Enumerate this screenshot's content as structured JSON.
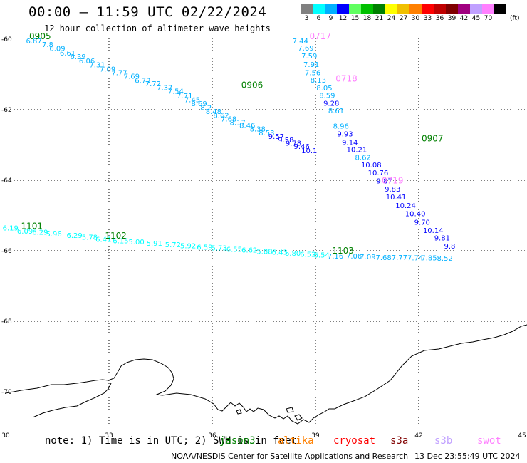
{
  "header": {
    "title": "00:00 – 11:59 UTC 02/22/2024",
    "subtitle": "12 hour collection of altimeter wave heights"
  },
  "legend": {
    "unit": "(ft)",
    "bins": [
      {
        "label": "3",
        "color": "#808080"
      },
      {
        "label": "6",
        "color": "#00ffff"
      },
      {
        "label": "9",
        "color": "#00b0ff"
      },
      {
        "label": "12",
        "color": "#0000ff"
      },
      {
        "label": "15",
        "color": "#60ff60"
      },
      {
        "label": "18",
        "color": "#00c000"
      },
      {
        "label": "21",
        "color": "#008000"
      },
      {
        "label": "24",
        "color": "#ffff00"
      },
      {
        "label": "27",
        "color": "#f0c000"
      },
      {
        "label": "30",
        "color": "#ff8000"
      },
      {
        "label": "33",
        "color": "#ff0000"
      },
      {
        "label": "36",
        "color": "#c00000"
      },
      {
        "label": "39",
        "color": "#800000"
      },
      {
        "label": "42",
        "color": "#a00080"
      },
      {
        "label": "45",
        "color": "#c0a0ff"
      },
      {
        "label": "70",
        "color": "#ff80ff"
      },
      {
        "label": "",
        "color": "#000000"
      }
    ]
  },
  "map": {
    "lon_ticks": [
      "30",
      "33",
      "36",
      "39",
      "42",
      "45"
    ],
    "lat_ticks": [
      "-60",
      "-62",
      "-64",
      "-66",
      "-68",
      "-70"
    ],
    "tracks": [
      {
        "name": "track-0905",
        "points": [
          {
            "t": "6.87",
            "lon": 30.82,
            "lat": -60.12,
            "c": "#00b0ff"
          },
          {
            "t": "7.8",
            "lon": 31.22,
            "lat": -60.22,
            "c": "#00b0ff"
          },
          {
            "t": "6.09",
            "lon": 31.5,
            "lat": -60.33,
            "c": "#00b0ff"
          },
          {
            "t": "6.61",
            "lon": 31.8,
            "lat": -60.46,
            "c": "#00b0ff"
          },
          {
            "t": "6.39",
            "lon": 32.1,
            "lat": -60.57,
            "c": "#00b0ff"
          },
          {
            "t": "6.06",
            "lon": 32.36,
            "lat": -60.69,
            "c": "#00b0ff"
          },
          {
            "t": "7.31",
            "lon": 32.66,
            "lat": -60.8,
            "c": "#00b0ff"
          },
          {
            "t": "7.09",
            "lon": 32.96,
            "lat": -60.92,
            "c": "#00b0ff"
          },
          {
            "t": "7.77",
            "lon": 33.3,
            "lat": -61.02,
            "c": "#00b0ff"
          },
          {
            "t": "7.69",
            "lon": 33.66,
            "lat": -61.12,
            "c": "#00b0ff"
          },
          {
            "t": "6.73",
            "lon": 33.98,
            "lat": -61.24,
            "c": "#00b0ff"
          },
          {
            "t": "7.72",
            "lon": 34.28,
            "lat": -61.33,
            "c": "#00b0ff"
          },
          {
            "t": "7.37",
            "lon": 34.62,
            "lat": -61.44,
            "c": "#00b0ff"
          },
          {
            "t": "7.54",
            "lon": 34.94,
            "lat": -61.55,
            "c": "#00b0ff"
          },
          {
            "t": "7.71",
            "lon": 35.2,
            "lat": -61.68,
            "c": "#00b0ff"
          },
          {
            "t": "7.45",
            "lon": 35.42,
            "lat": -61.79,
            "c": "#00b0ff"
          },
          {
            "t": "8.69",
            "lon": 35.62,
            "lat": -61.9,
            "c": "#00b0ff"
          },
          {
            "t": "8.2",
            "lon": 35.82,
            "lat": -62.01,
            "c": "#00b0ff"
          },
          {
            "t": "8.48",
            "lon": 36.04,
            "lat": -62.12,
            "c": "#00b0ff"
          },
          {
            "t": "8.62",
            "lon": 36.26,
            "lat": -62.23,
            "c": "#00b0ff"
          },
          {
            "t": "7.68",
            "lon": 36.48,
            "lat": -62.33,
            "c": "#00b0ff"
          },
          {
            "t": "8.17",
            "lon": 36.74,
            "lat": -62.43,
            "c": "#00b0ff"
          },
          {
            "t": "8.46",
            "lon": 37.02,
            "lat": -62.52,
            "c": "#00b0ff"
          },
          {
            "t": "8.38",
            "lon": 37.32,
            "lat": -62.62,
            "c": "#00b0ff"
          },
          {
            "t": "8.53",
            "lon": 37.58,
            "lat": -62.73,
            "c": "#00b0ff"
          },
          {
            "t": "9.57",
            "lon": 37.86,
            "lat": -62.83,
            "c": "#0000ff"
          },
          {
            "t": "9.58",
            "lon": 38.14,
            "lat": -62.93,
            "c": "#0000ff"
          },
          {
            "t": "9.78",
            "lon": 38.36,
            "lat": -63.02,
            "c": "#0000ff"
          },
          {
            "t": "9.46",
            "lon": 38.6,
            "lat": -63.11,
            "c": "#0000ff"
          },
          {
            "t": "10.1",
            "lon": 38.82,
            "lat": -63.23,
            "c": "#0000ff"
          }
        ]
      },
      {
        "name": "track-0717",
        "points": [
          {
            "t": "7.44",
            "lon": 38.56,
            "lat": -60.12,
            "c": "#00b0ff"
          },
          {
            "t": "7.69",
            "lon": 38.72,
            "lat": -60.32,
            "c": "#00b0ff"
          },
          {
            "t": "7.59",
            "lon": 38.82,
            "lat": -60.55,
            "c": "#00b0ff"
          },
          {
            "t": "7.91",
            "lon": 38.88,
            "lat": -60.79,
            "c": "#00b0ff"
          },
          {
            "t": "7.56",
            "lon": 38.92,
            "lat": -61.02,
            "c": "#00b0ff"
          },
          {
            "t": "8.13",
            "lon": 39.08,
            "lat": -61.23,
            "c": "#00b0ff"
          },
          {
            "t": "8.05",
            "lon": 39.26,
            "lat": -61.45,
            "c": "#00b0ff"
          },
          {
            "t": "8.59",
            "lon": 39.34,
            "lat": -61.67,
            "c": "#00b0ff"
          },
          {
            "t": "9.28",
            "lon": 39.46,
            "lat": -61.89,
            "c": "#0000ff"
          },
          {
            "t": "8.61",
            "lon": 39.6,
            "lat": -62.1,
            "c": "#00b0ff"
          },
          {
            "t": "8.96",
            "lon": 39.74,
            "lat": -62.54,
            "c": "#00b0ff"
          },
          {
            "t": "9.93",
            "lon": 39.86,
            "lat": -62.76,
            "c": "#0000ff"
          },
          {
            "t": "9.14",
            "lon": 40.0,
            "lat": -63.0,
            "c": "#0000ff"
          },
          {
            "t": "10.21",
            "lon": 40.2,
            "lat": -63.2,
            "c": "#0000ff"
          },
          {
            "t": "8.62",
            "lon": 40.38,
            "lat": -63.42,
            "c": "#00b0ff"
          },
          {
            "t": "10.08",
            "lon": 40.62,
            "lat": -63.64,
            "c": "#0000ff"
          },
          {
            "t": "10.76",
            "lon": 40.82,
            "lat": -63.86,
            "c": "#0000ff"
          },
          {
            "t": "9.87",
            "lon": 41.0,
            "lat": -64.09,
            "c": "#0000ff"
          },
          {
            "t": "9.83",
            "lon": 41.24,
            "lat": -64.32,
            "c": "#0000ff"
          },
          {
            "t": "10.41",
            "lon": 41.34,
            "lat": -64.55,
            "c": "#0000ff"
          },
          {
            "t": "10.24",
            "lon": 41.62,
            "lat": -64.79,
            "c": "#0000ff"
          },
          {
            "t": "10.40",
            "lon": 41.9,
            "lat": -65.02,
            "c": "#0000ff"
          },
          {
            "t": "9.70",
            "lon": 42.1,
            "lat": -65.26,
            "c": "#0000ff"
          },
          {
            "t": "10.14",
            "lon": 42.42,
            "lat": -65.49,
            "c": "#0000ff"
          },
          {
            "t": "9.81",
            "lon": 42.68,
            "lat": -65.71,
            "c": "#0000ff"
          },
          {
            "t": "9.8",
            "lon": 42.9,
            "lat": -65.94,
            "c": "#0000ff"
          }
        ]
      },
      {
        "name": "track-1101",
        "points": [
          {
            "t": "6.19",
            "lon": 30.14,
            "lat": -65.42,
            "c": "#00ffff"
          },
          {
            "t": "6.09",
            "lon": 30.56,
            "lat": -65.52,
            "c": "#00ffff"
          },
          {
            "t": "6.29",
            "lon": 31.0,
            "lat": -65.55,
            "c": "#00ffff"
          },
          {
            "t": "5.96",
            "lon": 31.4,
            "lat": -65.6,
            "c": "#00ffff"
          },
          {
            "t": "6.29",
            "lon": 32.0,
            "lat": -65.64,
            "c": "#00ffff"
          },
          {
            "t": "5.78",
            "lon": 32.44,
            "lat": -65.69,
            "c": "#00ffff"
          },
          {
            "t": "6.41",
            "lon": 32.84,
            "lat": -65.75,
            "c": "#00ffff"
          },
          {
            "t": "6.15",
            "lon": 33.34,
            "lat": -65.79,
            "c": "#00ffff"
          },
          {
            "t": "5.00",
            "lon": 33.8,
            "lat": -65.82,
            "c": "#00ffff"
          },
          {
            "t": "5.91",
            "lon": 34.32,
            "lat": -65.86,
            "c": "#00ffff"
          },
          {
            "t": "5.72",
            "lon": 34.86,
            "lat": -65.9,
            "c": "#00ffff"
          },
          {
            "t": "5.92",
            "lon": 35.3,
            "lat": -65.93,
            "c": "#00ffff"
          },
          {
            "t": "6.59",
            "lon": 35.78,
            "lat": -65.97,
            "c": "#00ffff"
          },
          {
            "t": "5.73",
            "lon": 36.2,
            "lat": -65.99,
            "c": "#00ffff"
          },
          {
            "t": "6.55",
            "lon": 36.64,
            "lat": -66.03,
            "c": "#00ffff"
          },
          {
            "t": "6.62",
            "lon": 37.08,
            "lat": -66.05,
            "c": "#00ffff"
          },
          {
            "t": "5.88",
            "lon": 37.52,
            "lat": -66.09,
            "c": "#00ffff"
          },
          {
            "t": "6.43",
            "lon": 37.96,
            "lat": -66.11,
            "c": "#00ffff"
          },
          {
            "t": "6.80",
            "lon": 38.34,
            "lat": -66.14,
            "c": "#00ffff"
          },
          {
            "t": "6.52",
            "lon": 38.78,
            "lat": -66.17,
            "c": "#00ffff"
          },
          {
            "t": "6.54",
            "lon": 39.18,
            "lat": -66.19,
            "c": "#00ffff"
          },
          {
            "t": "7.16",
            "lon": 39.58,
            "lat": -66.22,
            "c": "#00b0ff"
          },
          {
            "t": "7.06",
            "lon": 40.12,
            "lat": -66.22,
            "c": "#00b0ff"
          },
          {
            "t": "7.09",
            "lon": 40.52,
            "lat": -66.24,
            "c": "#00b0ff"
          },
          {
            "t": "7.68",
            "lon": 40.98,
            "lat": -66.26,
            "c": "#00b0ff"
          },
          {
            "t": "7.77",
            "lon": 41.44,
            "lat": -66.26,
            "c": "#00b0ff"
          },
          {
            "t": "7.74",
            "lon": 41.9,
            "lat": -66.27,
            "c": "#00b0ff"
          },
          {
            "t": "7.85",
            "lon": 42.3,
            "lat": -66.27,
            "c": "#00b0ff"
          },
          {
            "t": "8.52",
            "lon": 42.76,
            "lat": -66.28,
            "c": "#00b0ff"
          }
        ]
      }
    ],
    "pass_labels": [
      {
        "text": "0905",
        "lon": 31.0,
        "lat": -60.0,
        "c": "#008000"
      },
      {
        "text": "0717",
        "lon": 39.14,
        "lat": -60.0,
        "c": "#ff80ff"
      },
      {
        "text": "0718",
        "lon": 39.9,
        "lat": -61.2,
        "c": "#ff80ff"
      },
      {
        "text": "0906",
        "lon": 37.16,
        "lat": -61.38,
        "c": "#008000"
      },
      {
        "text": "0907",
        "lon": 42.4,
        "lat": -62.9,
        "c": "#008000"
      },
      {
        "text": "0719",
        "lon": 41.24,
        "lat": -64.09,
        "c": "#ff80ff"
      },
      {
        "text": "1101",
        "lon": 30.76,
        "lat": -65.38,
        "c": "#008000"
      },
      {
        "text": "1102",
        "lon": 33.2,
        "lat": -65.66,
        "c": "#008000"
      },
      {
        "text": "1103",
        "lon": 39.8,
        "lat": -66.08,
        "c": "#008000"
      }
    ]
  },
  "footer": {
    "note": "note: 1) Time is in UTC; 2) SWH is in feet",
    "missions": [
      {
        "name": "jason3",
        "color": "#008000"
      },
      {
        "name": "altika",
        "color": "#ff8000"
      },
      {
        "name": "cryosat",
        "color": "#ff0000"
      },
      {
        "name": "s3a",
        "color": "#800000"
      },
      {
        "name": "s3b",
        "color": "#c0a0ff"
      },
      {
        "name": "swot",
        "color": "#ff80ff"
      }
    ],
    "credit": "NOAA/NESDIS Center for Satellite Applications and Research",
    "generated": "13 Dec 23:55:49 UTC 2024"
  }
}
